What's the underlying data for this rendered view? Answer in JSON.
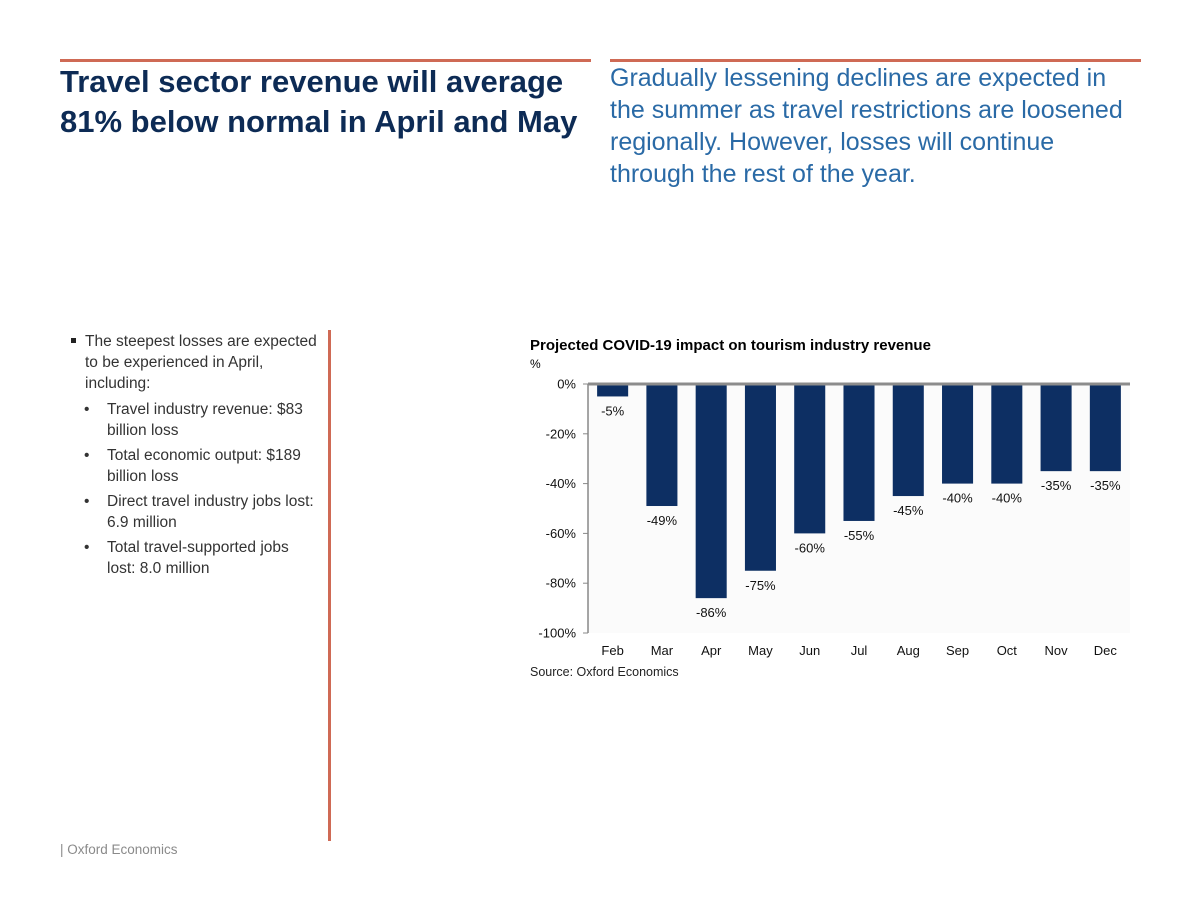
{
  "headline": "Travel sector revenue will average 81% below normal in April and May",
  "subhead": "Gradually lessening declines are expected in the summer as travel restrictions are loosened regionally. However, losses will continue through the rest of the year.",
  "bullets": {
    "main": "The steepest losses are expected to be experienced in April, including:",
    "items": [
      "Travel industry revenue: $83 billion loss",
      "Total economic output: $189 billion loss",
      "Direct travel industry jobs lost: 6.9 million",
      "Total travel-supported jobs lost: 8.0 million"
    ],
    "sub_marker": "•"
  },
  "chart_unit": "%",
  "chart_source": "Source: Oxford Economics",
  "footer": "| Oxford Economics",
  "colors": {
    "accent_rule": "#cf6a55",
    "bar": "#0d2f63",
    "headline": "#0d2b55",
    "subhead": "#2a6aa6"
  },
  "chart_data": {
    "type": "bar",
    "title": "Projected COVID-19 impact on tourism industry revenue",
    "ylabel": "%",
    "xlabel": "",
    "categories": [
      "Feb",
      "Mar",
      "Apr",
      "May",
      "Jun",
      "Jul",
      "Aug",
      "Sep",
      "Oct",
      "Nov",
      "Dec"
    ],
    "values": [
      -5,
      -49,
      -86,
      -75,
      -60,
      -55,
      -45,
      -40,
      -40,
      -35,
      -35
    ],
    "data_labels": [
      "-5%",
      "-49%",
      "-86%",
      "-75%",
      "-60%",
      "-55%",
      "-45%",
      "-40%",
      "-40%",
      "-35%",
      "-35%"
    ],
    "ylim": [
      -100,
      0
    ],
    "yticks": [
      0,
      -20,
      -40,
      -60,
      -80,
      -100
    ],
    "ytick_labels": [
      "0%",
      "-20%",
      "-40%",
      "-60%",
      "-80%",
      "-100%"
    ],
    "grid": false,
    "legend": "none"
  }
}
